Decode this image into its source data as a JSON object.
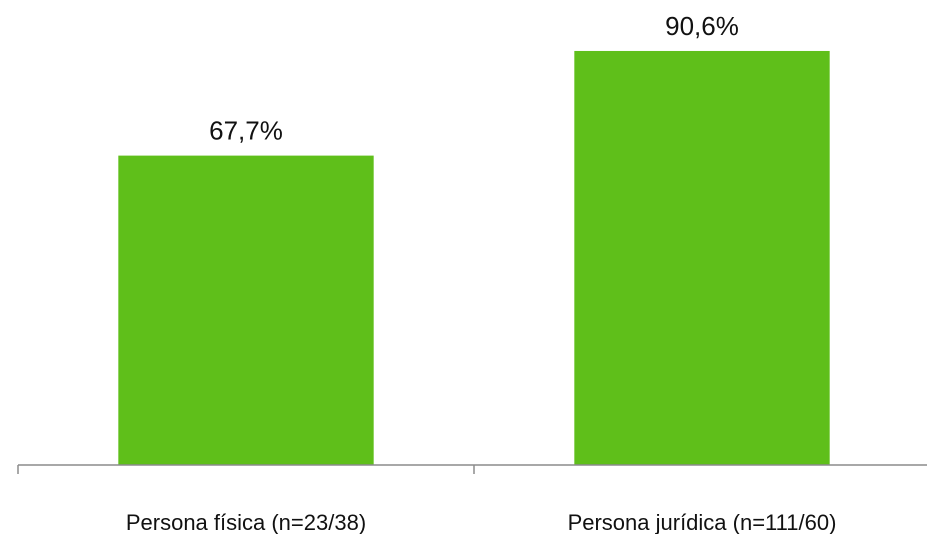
{
  "chart_data": {
    "type": "bar",
    "title": "",
    "xlabel": "",
    "ylabel": "",
    "categories": [
      "Persona física (n=23/38)",
      "Persona jurídica (n=111/60)"
    ],
    "values": [
      67.7,
      90.6
    ],
    "data_labels": [
      "67,7%",
      "90,6%"
    ],
    "ylim": [
      0,
      100
    ],
    "grid": false,
    "legend": "none",
    "colors": {
      "bar": "#5fbf1a",
      "axis": "#8c8c8c",
      "text": "#111111"
    }
  }
}
